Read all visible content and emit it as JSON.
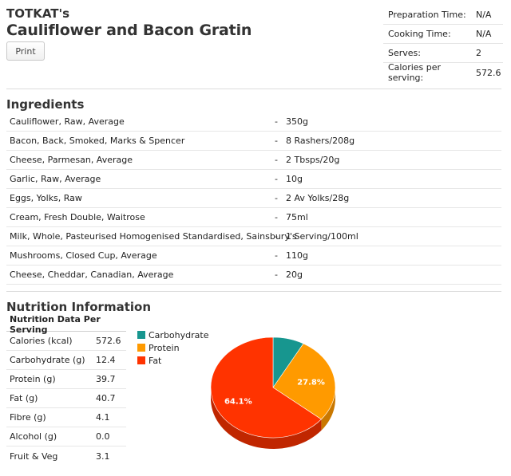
{
  "recipe": {
    "author": "TOTKAT's",
    "title": "Cauliflower and Bacon Gratin",
    "print_label": "Print"
  },
  "meta": [
    {
      "label": "Preparation Time:",
      "value": "N/A"
    },
    {
      "label": "Cooking Time:",
      "value": "N/A"
    },
    {
      "label": "Serves:",
      "value": "2"
    },
    {
      "label": "Calories per serving:",
      "value": "572.6"
    }
  ],
  "ingredients": {
    "title": "Ingredients",
    "items": [
      {
        "name": "Cauliflower, Raw, Average",
        "dash": "-",
        "qty": "350g"
      },
      {
        "name": "Bacon, Back, Smoked, Marks & Spencer",
        "dash": "-",
        "qty": "8 Rashers/208g"
      },
      {
        "name": "Cheese, Parmesan, Average",
        "dash": "-",
        "qty": "2 Tbsps/20g"
      },
      {
        "name": "Garlic, Raw, Average",
        "dash": "-",
        "qty": "10g"
      },
      {
        "name": "Eggs, Yolks, Raw",
        "dash": "-",
        "qty": "2 Av Yolks/28g"
      },
      {
        "name": "Cream, Fresh Double, Waitrose",
        "dash": "-",
        "qty": "75ml"
      },
      {
        "name": "Milk, Whole, Pasteurised Homogenised Standardised, Sainsbury's",
        "dash": "-",
        "qty": "1 Serving/100ml"
      },
      {
        "name": "Mushrooms, Closed Cup, Average",
        "dash": "-",
        "qty": "110g"
      },
      {
        "name": "Cheese, Cheddar, Canadian, Average",
        "dash": "-",
        "qty": "20g"
      }
    ]
  },
  "nutrition": {
    "title": "Nutrition Information",
    "table_header": "Nutrition Data Per Serving",
    "rows": [
      {
        "label": "Calories (kcal)",
        "value": "572.6"
      },
      {
        "label": "Carbohydrate (g)",
        "value": "12.4"
      },
      {
        "label": "Protein (g)",
        "value": "39.7"
      },
      {
        "label": "Fat (g)",
        "value": "40.7"
      },
      {
        "label": "Fibre (g)",
        "value": "4.1"
      },
      {
        "label": "Alcohol (g)",
        "value": "0.0"
      },
      {
        "label": "Fruit & Veg",
        "value": "3.1"
      }
    ]
  },
  "chart_data": {
    "type": "pie",
    "categories": [
      "Carbohydrate",
      "Protein",
      "Fat"
    ],
    "values": [
      8.1,
      27.8,
      64.1
    ],
    "data_labels": [
      "",
      "27.8%",
      "64.1%"
    ],
    "colors": [
      "#17968f",
      "#ff9a00",
      "#ff3300"
    ],
    "side_colors": [
      "#0e6d68",
      "#c97800",
      "#c02600"
    ],
    "legend": "left"
  }
}
